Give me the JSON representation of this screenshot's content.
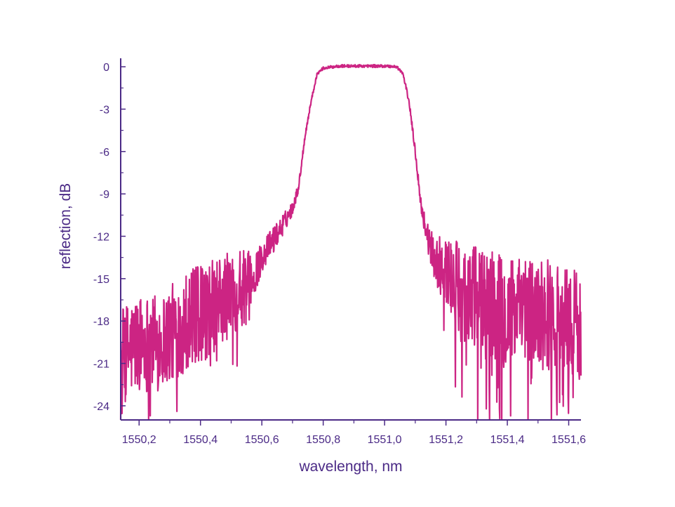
{
  "chart_data": {
    "type": "line",
    "title": "",
    "xlabel": "wavelength, nm",
    "ylabel": "reflection, dB",
    "xlim": [
      1550.14,
      1551.64
    ],
    "ylim": [
      -25,
      0.6
    ],
    "x_ticks": [
      "1550,2",
      "1550,4",
      "1550,6",
      "1550,8",
      "1551,0",
      "1551,2",
      "1551,4",
      "1551,6"
    ],
    "y_ticks": [
      "0",
      "-3",
      "-6",
      "-9",
      "-12",
      "-15",
      "-18",
      "-21",
      "-24"
    ],
    "grid": false,
    "legend": "none",
    "colors": {
      "axis": "#4b2a86",
      "series": "#cc2483"
    },
    "series": [
      {
        "x": [
          1550.14,
          1550.2,
          1550.26,
          1550.3,
          1550.35,
          1550.4,
          1550.45,
          1550.5,
          1550.55,
          1550.58,
          1550.6,
          1550.63,
          1550.66,
          1550.7,
          1550.72,
          1550.74,
          1550.76,
          1550.78,
          1550.8,
          1550.85,
          1550.9,
          1550.95,
          1551.0,
          1551.04,
          1551.06,
          1551.08,
          1551.1,
          1551.12,
          1551.14,
          1551.16,
          1551.2,
          1551.25,
          1551.3,
          1551.35,
          1551.4,
          1551.45,
          1551.5,
          1551.55,
          1551.6,
          1551.64
        ],
        "y": [
          -20.5,
          -19.5,
          -19.5,
          -19,
          -18,
          -17.5,
          -17,
          -16,
          -15.5,
          -14.5,
          -13.5,
          -12.5,
          -11.5,
          -10,
          -8.5,
          -5,
          -2.5,
          -0.5,
          -0.1,
          0.05,
          0.05,
          0.05,
          0.05,
          0,
          -0.5,
          -2.5,
          -6,
          -10,
          -12,
          -13.5,
          -14.5,
          -16,
          -16.5,
          -17,
          -17.5,
          -17.5,
          -17.5,
          -17.5,
          -18,
          -18.5
        ],
        "noise_dB": [
          3.5,
          3.5,
          3.5,
          3.5,
          3.5,
          3.5,
          3.5,
          3,
          2.5,
          1.5,
          1,
          1,
          0.8,
          0.5,
          0.3,
          0.2,
          0.15,
          0.1,
          0.1,
          0.1,
          0.1,
          0.1,
          0.1,
          0.1,
          0.15,
          0.2,
          0.3,
          0.5,
          1,
          1.5,
          2.5,
          3.5,
          4,
          4,
          4,
          4,
          4,
          4,
          4,
          4
        ]
      }
    ]
  }
}
